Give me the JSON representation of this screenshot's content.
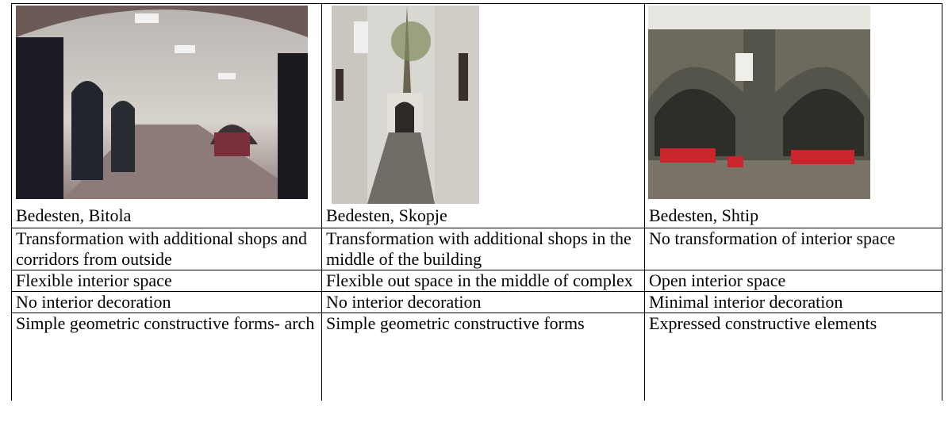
{
  "table": {
    "rows": [
      [
        "Bedesten, Bitola",
        "Bedesten, Skopje",
        "Bedesten, Shtip"
      ],
      [
        "Transformation with additional shops and corridors from outside",
        "Transformation with additional shops in the middle of the building",
        "No transformation of interior space"
      ],
      [
        "Flexible interior space",
        "Flexible out space in the middle of complex",
        "Open interior space"
      ],
      [
        "No interior decoration",
        "No interior decoration",
        "Minimal interior decoration"
      ],
      [
        "Simple geometric constructive forms- arch",
        "Simple geometric constructive forms",
        "Expressed constructive elements"
      ]
    ]
  }
}
